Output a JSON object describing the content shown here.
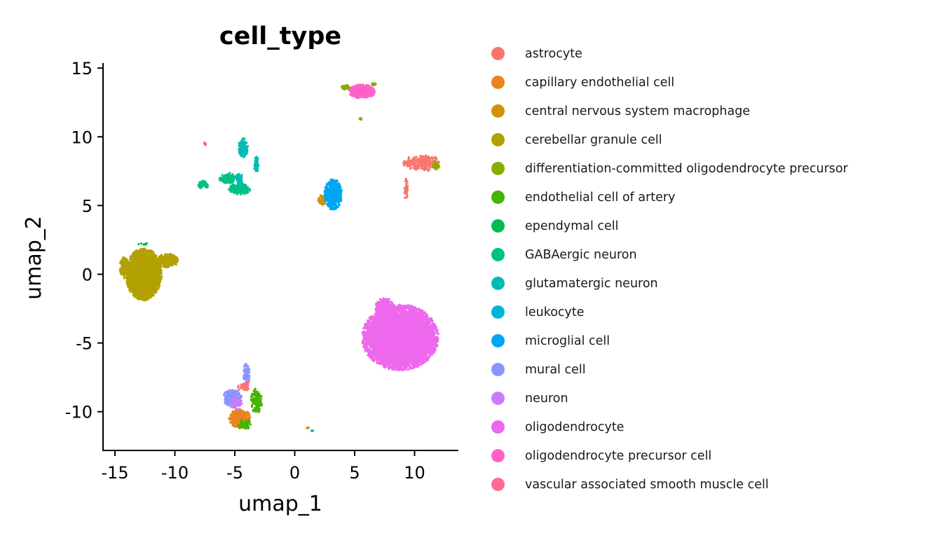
{
  "chart_data": {
    "type": "scatter",
    "title": "cell_type",
    "xlabel": "umap_1",
    "ylabel": "umap_2",
    "xlim": [
      -16,
      13.6
    ],
    "ylim": [
      -12.8,
      15.4
    ],
    "x_ticks": [
      -15,
      -10,
      -5,
      0,
      5,
      10
    ],
    "x_tick_labels": [
      "-15",
      "-10",
      "-5",
      "0",
      "5",
      "10"
    ],
    "y_ticks": [
      -10,
      -5,
      0,
      5,
      10,
      15
    ],
    "y_tick_labels": [
      "-10",
      "-5",
      "0",
      "5",
      "10",
      "15"
    ],
    "grid": false,
    "legend_placement": "right",
    "series": [
      {
        "name": "astrocyte",
        "color": "#F8766D",
        "clusters": [
          {
            "cx": 10.6,
            "cy": 8.1,
            "rx": 1.6,
            "ry": 0.6,
            "n": 260
          },
          {
            "cx": 9.3,
            "cy": 6.2,
            "rx": 0.2,
            "ry": 0.8,
            "n": 40
          },
          {
            "cx": -7.5,
            "cy": 9.5,
            "rx": 0.1,
            "ry": 0.15,
            "n": 8
          },
          {
            "cx": -4.3,
            "cy": -8.2,
            "rx": 0.5,
            "ry": 0.3,
            "n": 40
          }
        ]
      },
      {
        "name": "capillary endothelial cell",
        "color": "#E7851E",
        "clusters": [
          {
            "cx": -4.6,
            "cy": -10.5,
            "rx": 0.9,
            "ry": 0.7,
            "n": 420
          }
        ]
      },
      {
        "name": "central nervous system macrophage",
        "color": "#D09400",
        "clusters": [
          {
            "cx": 2.3,
            "cy": 5.4,
            "rx": 0.35,
            "ry": 0.4,
            "n": 60
          },
          {
            "cx": 1.1,
            "cy": -11.2,
            "rx": 0.1,
            "ry": 0.1,
            "n": 4
          }
        ]
      },
      {
        "name": "cerebellar granule cell",
        "color": "#B2A100",
        "clusters": [
          {
            "cx": -12.6,
            "cy": 0.0,
            "rx": 1.5,
            "ry": 1.9,
            "n": 4000
          },
          {
            "cx": -10.6,
            "cy": 1.0,
            "rx": 0.9,
            "ry": 0.5,
            "n": 260
          },
          {
            "cx": -14.2,
            "cy": 0.5,
            "rx": 0.4,
            "ry": 0.8,
            "n": 160
          }
        ]
      },
      {
        "name": "differentiation-committed oligodendrocyte precursor",
        "color": "#89AC00",
        "clusters": [
          {
            "cx": 4.3,
            "cy": 13.6,
            "rx": 0.45,
            "ry": 0.18,
            "n": 60
          },
          {
            "cx": 6.6,
            "cy": 13.8,
            "rx": 0.2,
            "ry": 0.12,
            "n": 14
          },
          {
            "cx": 5.5,
            "cy": 11.3,
            "rx": 0.1,
            "ry": 0.15,
            "n": 8
          },
          {
            "cx": 11.8,
            "cy": 7.9,
            "rx": 0.3,
            "ry": 0.3,
            "n": 30
          }
        ]
      },
      {
        "name": "endothelial cell of artery",
        "color": "#45B500",
        "clusters": [
          {
            "cx": -3.2,
            "cy": -9.2,
            "rx": 0.5,
            "ry": 0.9,
            "n": 160
          },
          {
            "cx": -4.2,
            "cy": -10.9,
            "rx": 0.6,
            "ry": 0.4,
            "n": 60
          }
        ]
      },
      {
        "name": "ependymal cell",
        "color": "#00BC51",
        "clusters": [
          {
            "cx": -12.6,
            "cy": 2.2,
            "rx": 0.5,
            "ry": 0.1,
            "n": 8
          }
        ]
      },
      {
        "name": "GABAergic neuron",
        "color": "#00C087",
        "clusters": [
          {
            "cx": -4.6,
            "cy": 6.2,
            "rx": 0.9,
            "ry": 0.4,
            "n": 260
          },
          {
            "cx": -7.6,
            "cy": 6.5,
            "rx": 0.45,
            "ry": 0.3,
            "n": 70
          },
          {
            "cx": -5.5,
            "cy": 7.0,
            "rx": 0.8,
            "ry": 0.4,
            "n": 120
          }
        ]
      },
      {
        "name": "glutamatergic neuron",
        "color": "#00BCB2",
        "clusters": [
          {
            "cx": -4.3,
            "cy": 9.2,
            "rx": 0.4,
            "ry": 0.7,
            "n": 160
          },
          {
            "cx": -3.2,
            "cy": 8.0,
            "rx": 0.2,
            "ry": 0.6,
            "n": 60
          },
          {
            "cx": -4.6,
            "cy": 6.9,
            "rx": 0.3,
            "ry": 0.6,
            "n": 80
          }
        ]
      },
      {
        "name": "leukocyte",
        "color": "#00B3D8",
        "clusters": [
          {
            "cx": 1.5,
            "cy": -11.4,
            "rx": 0.1,
            "ry": 0.1,
            "n": 5
          },
          {
            "cx": 3.3,
            "cy": 6.7,
            "rx": 0.3,
            "ry": 0.2,
            "n": 20
          }
        ]
      },
      {
        "name": "microglial cell",
        "color": "#00A6F4",
        "clusters": [
          {
            "cx": 3.2,
            "cy": 5.8,
            "rx": 0.75,
            "ry": 1.1,
            "n": 600
          }
        ]
      },
      {
        "name": "mural cell",
        "color": "#8A94FF",
        "clusters": [
          {
            "cx": -5.2,
            "cy": -9.0,
            "rx": 0.8,
            "ry": 0.6,
            "n": 300
          },
          {
            "cx": -4.0,
            "cy": -7.2,
            "rx": 0.3,
            "ry": 0.8,
            "n": 70
          }
        ]
      },
      {
        "name": "neuron",
        "color": "#C77CFF",
        "clusters": [
          {
            "cx": -4.9,
            "cy": -9.4,
            "rx": 0.5,
            "ry": 0.5,
            "n": 70
          }
        ]
      },
      {
        "name": "oligodendrocyte",
        "color": "#ED68ED",
        "clusters": [
          {
            "cx": 8.8,
            "cy": -4.6,
            "rx": 3.2,
            "ry": 2.4,
            "n": 7000
          },
          {
            "cx": 7.5,
            "cy": -2.5,
            "rx": 0.8,
            "ry": 0.8,
            "n": 600
          }
        ]
      },
      {
        "name": "oligodendrocyte precursor cell",
        "color": "#FF61C9",
        "clusters": [
          {
            "cx": 5.6,
            "cy": 13.3,
            "rx": 1.1,
            "ry": 0.5,
            "n": 600
          }
        ]
      },
      {
        "name": "vascular associated smooth muscle cell",
        "color": "#FF6C91",
        "clusters": [
          {
            "cx": -4.1,
            "cy": -8.0,
            "rx": 0.3,
            "ry": 0.2,
            "n": 20
          }
        ]
      }
    ]
  }
}
